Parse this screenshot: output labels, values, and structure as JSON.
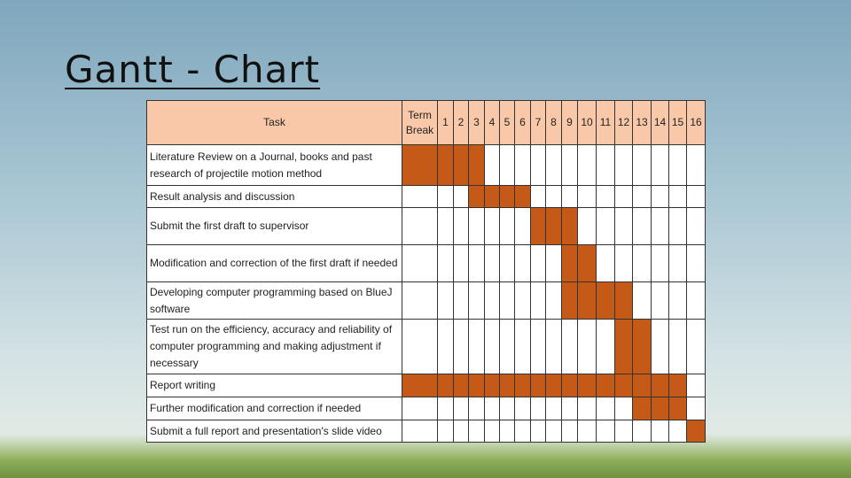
{
  "slide": {
    "title": "Gantt - Chart",
    "table": {
      "task_header": "Task",
      "columns": [
        "Term Break",
        "1",
        "2",
        "3",
        "4",
        "5",
        "6",
        "7",
        "8",
        "9",
        "10",
        "11",
        "12",
        "13",
        "14",
        "15",
        "16"
      ],
      "rows": [
        {
          "task": "Literature Review on a Journal, books and past research of projectile motion method",
          "active": [
            true,
            true,
            true,
            true,
            false,
            false,
            false,
            false,
            false,
            false,
            false,
            false,
            false,
            false,
            false,
            false,
            false
          ]
        },
        {
          "task": "Result analysis and discussion",
          "active": [
            false,
            false,
            false,
            true,
            true,
            true,
            true,
            false,
            false,
            false,
            false,
            false,
            false,
            false,
            false,
            false,
            false
          ]
        },
        {
          "task": "Submit the first draft to supervisor",
          "active": [
            false,
            false,
            false,
            false,
            false,
            false,
            false,
            true,
            true,
            true,
            false,
            false,
            false,
            false,
            false,
            false,
            false
          ]
        },
        {
          "task": "Modification and correction of the first draft if needed",
          "active": [
            false,
            false,
            false,
            false,
            false,
            false,
            false,
            false,
            false,
            true,
            true,
            false,
            false,
            false,
            false,
            false,
            false
          ]
        },
        {
          "task": "Developing computer programming based on BlueJ software",
          "active": [
            false,
            false,
            false,
            false,
            false,
            false,
            false,
            false,
            false,
            true,
            true,
            true,
            true,
            false,
            false,
            false,
            false
          ]
        },
        {
          "task": "Test run on the efficiency, accuracy and reliability of computer programming and making adjustment if necessary",
          "active": [
            false,
            false,
            false,
            false,
            false,
            false,
            false,
            false,
            false,
            false,
            false,
            false,
            true,
            true,
            false,
            false,
            false
          ]
        },
        {
          "task": "Report writing",
          "active": [
            true,
            true,
            true,
            true,
            true,
            true,
            true,
            true,
            true,
            true,
            true,
            true,
            true,
            true,
            true,
            true,
            false
          ]
        },
        {
          "task": "Further modification and correction if needed",
          "active": [
            false,
            false,
            false,
            false,
            false,
            false,
            false,
            false,
            false,
            false,
            false,
            false,
            false,
            true,
            true,
            true,
            false
          ]
        },
        {
          "task": "Submit a full report and presentation's slide video",
          "active": [
            false,
            false,
            false,
            false,
            false,
            false,
            false,
            false,
            false,
            false,
            false,
            false,
            false,
            false,
            false,
            false,
            true
          ]
        }
      ]
    }
  }
}
